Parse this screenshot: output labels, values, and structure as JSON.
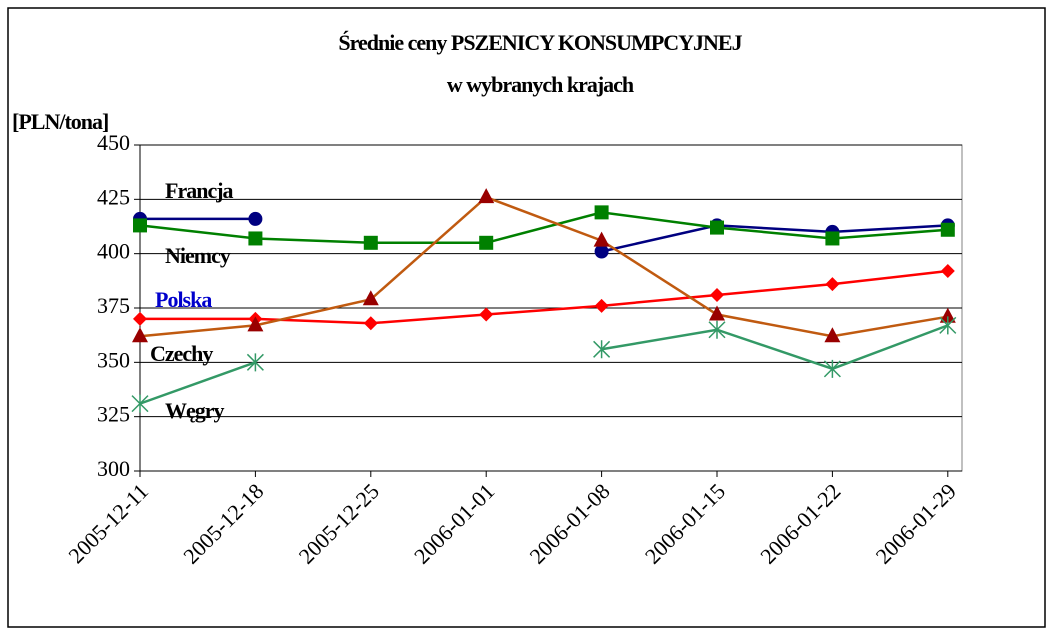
{
  "chart_data": {
    "type": "line",
    "title": [
      "Średnie ceny PSZENICY KONSUMPCYJNEJ",
      "w wybranych krajach"
    ],
    "y_label": "[PLN/tona]",
    "categories": [
      "2005-12-11",
      "2005-12-18",
      "2005-12-25",
      "2006-01-01",
      "2006-01-08",
      "2006-01-15",
      "2006-01-22",
      "2006-01-29"
    ],
    "series": [
      {
        "name": "Francja",
        "color": "#000080",
        "marker": "circle",
        "values": [
          416,
          416,
          null,
          null,
          401,
          413,
          410,
          413
        ]
      },
      {
        "name": "Niemcy",
        "color": "#008000",
        "marker": "square",
        "values": [
          413,
          407,
          405,
          405,
          419,
          412,
          407,
          411
        ]
      },
      {
        "name": "Polska",
        "color": "#ff0000",
        "marker": "diamond",
        "values": [
          370,
          370,
          368,
          372,
          376,
          381,
          386,
          392
        ]
      },
      {
        "name": "Czechy",
        "color": "#c05a10",
        "marker_color": "#990000",
        "marker": "triangle",
        "values": [
          362,
          367,
          379,
          426,
          406,
          372,
          362,
          371
        ]
      },
      {
        "name": "Węgry",
        "color": "#339966",
        "marker": "asterisk",
        "values": [
          331,
          350,
          null,
          null,
          356,
          365,
          347,
          367
        ]
      }
    ],
    "ylim": [
      300,
      450
    ],
    "yticks": [
      300,
      325,
      350,
      375,
      400,
      425,
      450
    ],
    "grid": true
  }
}
